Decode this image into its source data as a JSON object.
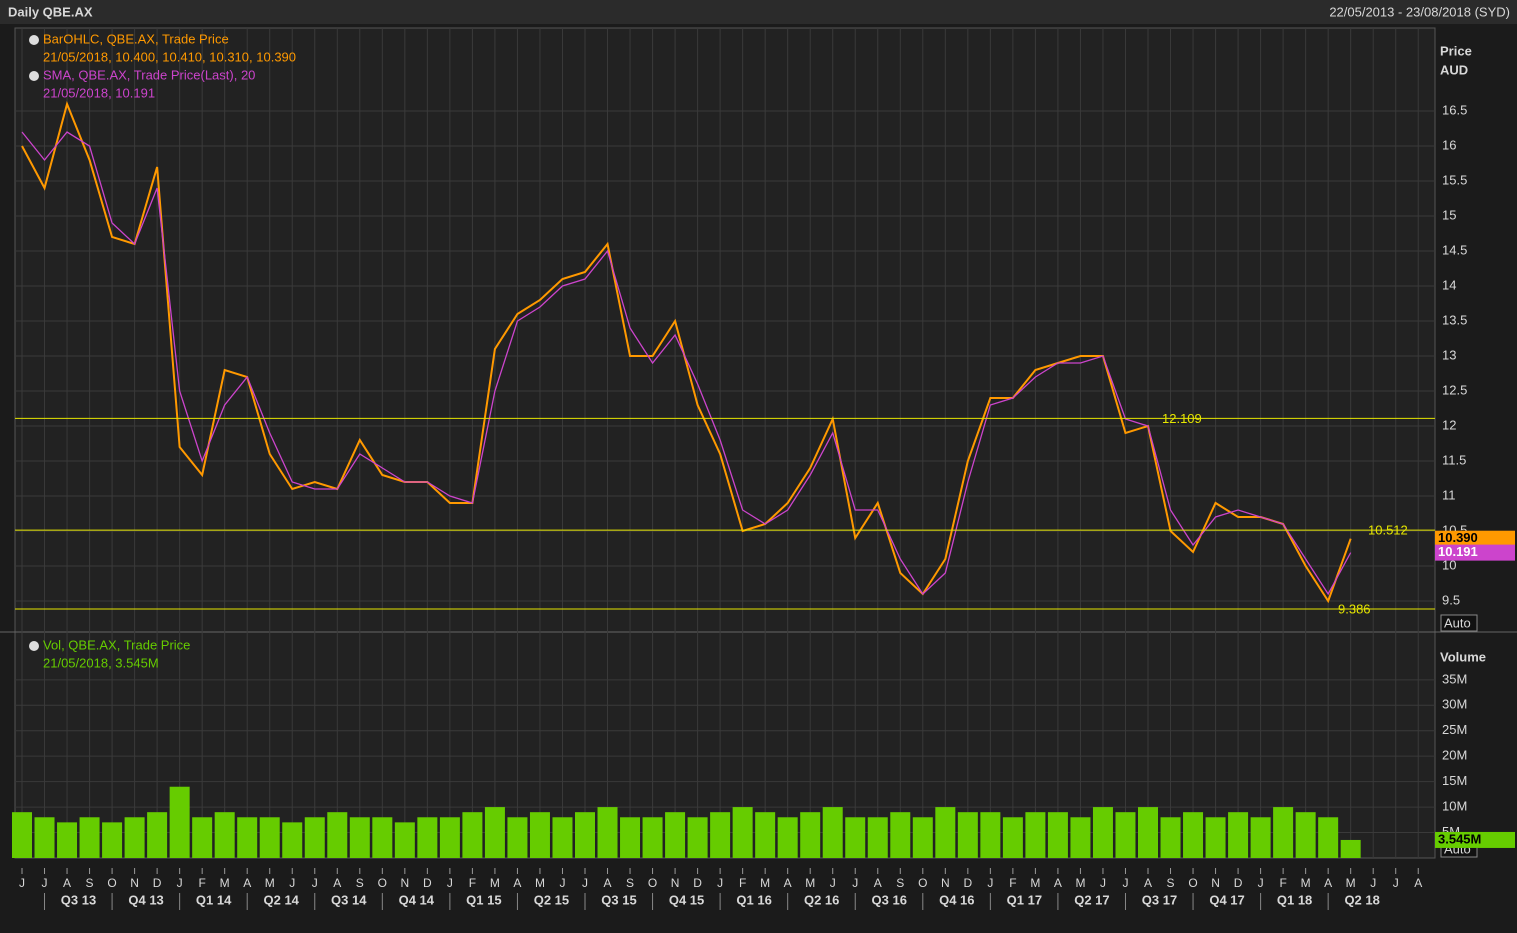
{
  "header": {
    "title": "Daily QBE.AX",
    "range": "22/05/2013 - 23/08/2018 (SYD)"
  },
  "chart_data": [
    {
      "type": "line",
      "y_label": "Price",
      "y_unit": "AUD",
      "scale_mode": "Auto",
      "categories": [
        "J",
        "J",
        "A",
        "S",
        "O",
        "N",
        "D",
        "J",
        "F",
        "M",
        "A",
        "M",
        "J",
        "J",
        "A",
        "S",
        "O",
        "N",
        "D",
        "J",
        "F",
        "M",
        "A",
        "M",
        "J",
        "J",
        "A",
        "S",
        "O",
        "N",
        "D",
        "J",
        "F",
        "M",
        "A",
        "M",
        "J",
        "J",
        "A",
        "S",
        "O",
        "N",
        "D",
        "J",
        "F",
        "M",
        "A",
        "M",
        "J",
        "J",
        "A",
        "S",
        "O",
        "N",
        "D",
        "J",
        "F",
        "M",
        "A",
        "M",
        "J",
        "J",
        "A"
      ],
      "quarters": [
        "Q3 13",
        "Q4 13",
        "Q1 14",
        "Q2 14",
        "Q3 14",
        "Q4 14",
        "Q1 15",
        "Q2 15",
        "Q3 15",
        "Q4 15",
        "Q1 16",
        "Q2 16",
        "Q3 16",
        "Q4 16",
        "Q1 17",
        "Q2 17",
        "Q3 17",
        "Q4 17",
        "Q1 18",
        "Q2 18"
      ],
      "series": [
        {
          "name": "BarOHLC, QBE.AX, Trade Price",
          "detail": "21/05/2018, 10.400, 10.410, 10.310, 10.390",
          "color": "#ff9900",
          "last_value": {
            "value": 10.39,
            "label": "10.390"
          },
          "values": [
            16.0,
            15.4,
            16.6,
            15.8,
            14.7,
            14.6,
            15.7,
            11.7,
            11.3,
            12.8,
            12.7,
            11.6,
            11.1,
            11.2,
            11.1,
            11.8,
            11.3,
            11.2,
            11.2,
            10.9,
            10.9,
            13.1,
            13.6,
            13.8,
            14.1,
            14.2,
            14.6,
            13.0,
            13.0,
            13.5,
            12.3,
            11.6,
            10.5,
            10.6,
            10.9,
            11.4,
            12.1,
            10.4,
            10.9,
            9.9,
            9.6,
            10.1,
            11.5,
            12.4,
            12.4,
            12.8,
            12.9,
            13.0,
            13.0,
            11.9,
            12.0,
            10.5,
            10.2,
            10.9,
            10.7,
            10.7,
            10.6,
            10.0,
            9.5,
            10.39,
            null,
            null,
            null
          ]
        },
        {
          "name": "SMA, QBE.AX, Trade Price(Last),  20",
          "detail": "21/05/2018, 10.191",
          "color": "#cc44cc",
          "last_value": {
            "value": 10.191,
            "label": "10.191"
          },
          "values": [
            16.2,
            15.8,
            16.2,
            16.0,
            14.9,
            14.6,
            15.4,
            12.5,
            11.5,
            12.3,
            12.7,
            11.9,
            11.2,
            11.1,
            11.1,
            11.6,
            11.4,
            11.2,
            11.2,
            11.0,
            10.9,
            12.5,
            13.5,
            13.7,
            14.0,
            14.1,
            14.5,
            13.4,
            12.9,
            13.3,
            12.6,
            11.8,
            10.8,
            10.6,
            10.8,
            11.3,
            11.9,
            10.8,
            10.8,
            10.1,
            9.6,
            9.9,
            11.2,
            12.3,
            12.4,
            12.7,
            12.9,
            12.9,
            13.0,
            12.1,
            12.0,
            10.8,
            10.3,
            10.7,
            10.8,
            10.7,
            10.6,
            10.1,
            9.6,
            10.191,
            null,
            null,
            null
          ]
        }
      ],
      "levels": [
        12.109,
        10.512,
        9.386
      ],
      "level_color": "#e6e600",
      "ylim": [
        9.057,
        17.686
      ],
      "yticks": [
        9.5,
        10,
        10.5,
        11,
        11.5,
        12,
        12.5,
        13,
        13.5,
        14,
        14.5,
        15,
        15.5,
        16,
        16.5
      ],
      "grid": true
    },
    {
      "type": "bar",
      "y_label": "Volume",
      "scale_mode": "Auto",
      "series": [
        {
          "name": "Vol, QBE.AX, Trade Price",
          "detail": "21/05/2018, 3.545M",
          "color": "#66cc00",
          "last_value": {
            "value": 3.545,
            "label": "3.545M"
          },
          "values": [
            9,
            8,
            7,
            8,
            7,
            8,
            9,
            14,
            8,
            9,
            8,
            8,
            7,
            8,
            9,
            8,
            8,
            7,
            8,
            8,
            9,
            10,
            8,
            9,
            8,
            9,
            10,
            8,
            8,
            9,
            8,
            9,
            10,
            9,
            8,
            9,
            10,
            8,
            8,
            9,
            8,
            10,
            9,
            9,
            8,
            9,
            9,
            8,
            10,
            9,
            10,
            8,
            9,
            8,
            9,
            8,
            10,
            9,
            8,
            3.545,
            null,
            null,
            null
          ]
        }
      ],
      "ylim": [
        0,
        44
      ],
      "yticks": [
        {
          "value": 5,
          "label": "5M"
        },
        {
          "value": 10,
          "label": "10M"
        },
        {
          "value": 15,
          "label": "15M"
        },
        {
          "value": 20,
          "label": "20M"
        },
        {
          "value": 25,
          "label": "25M"
        },
        {
          "value": 30,
          "label": "30M"
        },
        {
          "value": 35,
          "label": "35M"
        }
      ],
      "grid": true
    }
  ]
}
